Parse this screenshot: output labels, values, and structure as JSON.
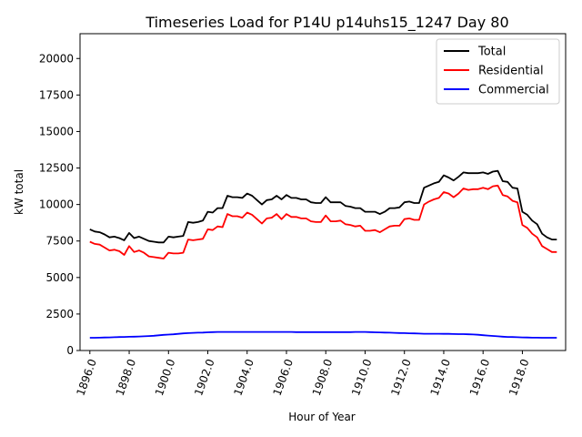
{
  "chart_data": {
    "type": "line",
    "title": "Timeseries Load for P14U p14uhs15_1247  Day 80",
    "xlabel": "Hour of Year",
    "ylabel": "kW total",
    "xlim": [
      1895.5,
      1920.2
    ],
    "ylim": [
      0,
      21700
    ],
    "grid": false,
    "legend_position": "top-right",
    "x_ticks": [
      1896,
      1898,
      1900,
      1902,
      1904,
      1906,
      1908,
      1910,
      1912,
      1914,
      1916,
      1918
    ],
    "x_tick_labels": [
      "1896.0",
      "1898.0",
      "1900.0",
      "1902.0",
      "1904.0",
      "1906.0",
      "1908.0",
      "1910.0",
      "1912.0",
      "1914.0",
      "1916.0",
      "1918.0"
    ],
    "y_ticks": [
      0,
      2500,
      5000,
      7500,
      10000,
      12500,
      15000,
      17500,
      20000
    ],
    "y_tick_labels": [
      "0",
      "2500",
      "5000",
      "7500",
      "10000",
      "12500",
      "15000",
      "17500",
      "20000"
    ],
    "x": [
      1896.0,
      1896.25,
      1896.5,
      1896.75,
      1897.0,
      1897.25,
      1897.5,
      1897.75,
      1898.0,
      1898.25,
      1898.5,
      1898.75,
      1899.0,
      1899.25,
      1899.5,
      1899.75,
      1900.0,
      1900.25,
      1900.5,
      1900.75,
      1901.0,
      1901.25,
      1901.5,
      1901.75,
      1902.0,
      1902.25,
      1902.5,
      1902.75,
      1903.0,
      1903.25,
      1903.5,
      1903.75,
      1904.0,
      1904.25,
      1904.5,
      1904.75,
      1905.0,
      1905.25,
      1905.5,
      1905.75,
      1906.0,
      1906.25,
      1906.5,
      1906.75,
      1907.0,
      1907.25,
      1907.5,
      1907.75,
      1908.0,
      1908.25,
      1908.5,
      1908.75,
      1909.0,
      1909.25,
      1909.5,
      1909.75,
      1910.0,
      1910.25,
      1910.5,
      1910.75,
      1911.0,
      1911.25,
      1911.5,
      1911.75,
      1912.0,
      1912.25,
      1912.5,
      1912.75,
      1913.0,
      1913.25,
      1913.5,
      1913.75,
      1914.0,
      1914.25,
      1914.5,
      1914.75,
      1915.0,
      1915.25,
      1915.5,
      1915.75,
      1916.0,
      1916.25,
      1916.5,
      1916.75,
      1917.0,
      1917.25,
      1917.5,
      1917.75,
      1918.0,
      1918.25,
      1918.5,
      1918.75,
      1919.0,
      1919.25,
      1919.5,
      1919.75
    ],
    "series": [
      {
        "name": "Total",
        "color": "#000000",
        "values": [
          8300,
          8150,
          8100,
          7950,
          7750,
          7800,
          7700,
          7550,
          8050,
          7700,
          7800,
          7650,
          7500,
          7450,
          7400,
          7400,
          7800,
          7750,
          7800,
          7850,
          8800,
          8750,
          8800,
          8900,
          9500,
          9450,
          9750,
          9750,
          10600,
          10500,
          10500,
          10450,
          10750,
          10600,
          10300,
          10000,
          10300,
          10350,
          10600,
          10350,
          10650,
          10450,
          10450,
          10350,
          10350,
          10150,
          10100,
          10100,
          10500,
          10150,
          10150,
          10150,
          9900,
          9850,
          9750,
          9750,
          9500,
          9500,
          9500,
          9350,
          9500,
          9750,
          9750,
          9800,
          10150,
          10200,
          10100,
          10100,
          11150,
          11300,
          11450,
          11550,
          12000,
          11850,
          11650,
          11900,
          12200,
          12150,
          12150,
          12150,
          12200,
          12100,
          12250,
          12300,
          11600,
          11550,
          11150,
          11100,
          9500,
          9300,
          8900,
          8650,
          8000,
          7750,
          7600,
          7600
        ]
      },
      {
        "name": "Residential",
        "color": "#ff0000",
        "values": [
          7450,
          7300,
          7250,
          7050,
          6850,
          6900,
          6800,
          6550,
          7150,
          6750,
          6850,
          6700,
          6450,
          6400,
          6350,
          6300,
          6700,
          6650,
          6650,
          6700,
          7600,
          7550,
          7600,
          7650,
          8300,
          8250,
          8500,
          8450,
          9350,
          9200,
          9200,
          9100,
          9450,
          9300,
          9000,
          8700,
          9050,
          9100,
          9350,
          9000,
          9350,
          9150,
          9150,
          9050,
          9050,
          8850,
          8800,
          8800,
          9250,
          8850,
          8850,
          8900,
          8650,
          8600,
          8500,
          8550,
          8200,
          8200,
          8250,
          8100,
          8300,
          8500,
          8550,
          8550,
          9000,
          9050,
          8950,
          8950,
          10000,
          10200,
          10350,
          10450,
          10850,
          10750,
          10500,
          10750,
          11100,
          11000,
          11050,
          11050,
          11150,
          11050,
          11250,
          11300,
          10650,
          10550,
          10250,
          10150,
          8600,
          8400,
          8000,
          7750,
          7150,
          6950,
          6750,
          6750
        ]
      },
      {
        "name": "Commercial",
        "color": "#0000ff",
        "values": [
          870,
          870,
          880,
          890,
          900,
          910,
          920,
          930,
          940,
          950,
          960,
          970,
          990,
          1010,
          1040,
          1070,
          1090,
          1110,
          1140,
          1170,
          1190,
          1210,
          1220,
          1230,
          1250,
          1260,
          1270,
          1270,
          1270,
          1270,
          1270,
          1270,
          1270,
          1270,
          1270,
          1270,
          1270,
          1270,
          1270,
          1270,
          1270,
          1270,
          1260,
          1260,
          1260,
          1260,
          1260,
          1260,
          1260,
          1260,
          1260,
          1260,
          1260,
          1260,
          1270,
          1270,
          1270,
          1260,
          1250,
          1240,
          1230,
          1220,
          1210,
          1200,
          1190,
          1180,
          1170,
          1160,
          1150,
          1150,
          1150,
          1150,
          1140,
          1140,
          1130,
          1120,
          1120,
          1110,
          1100,
          1080,
          1050,
          1020,
          1000,
          970,
          950,
          930,
          920,
          910,
          900,
          890,
          880,
          880,
          870,
          870,
          870,
          870
        ]
      }
    ]
  }
}
